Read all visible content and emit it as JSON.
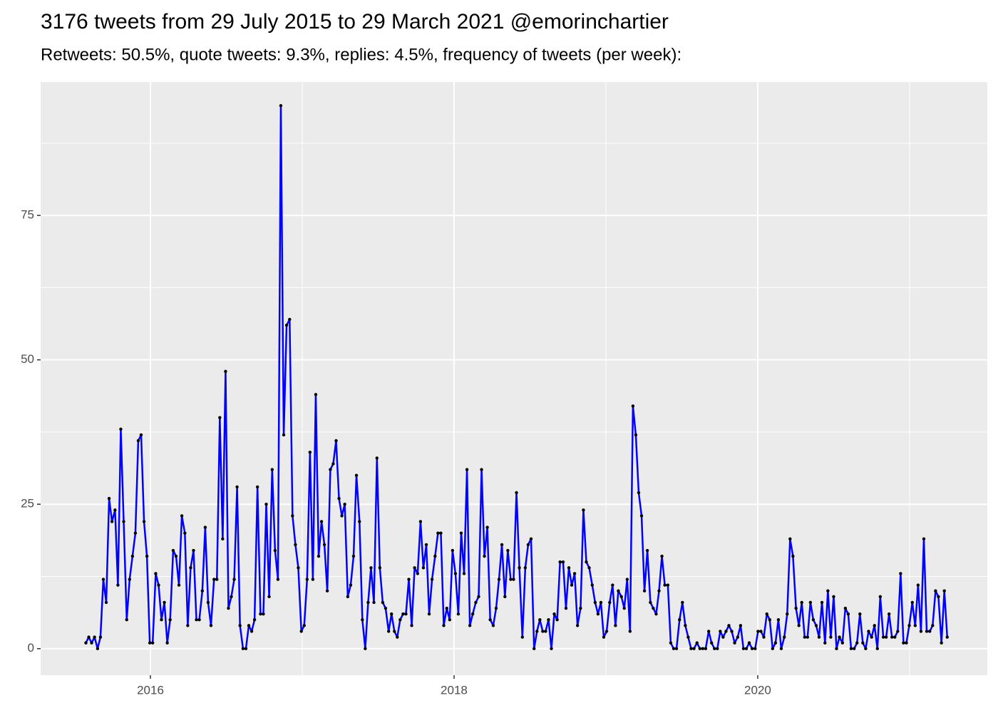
{
  "chart_data": {
    "type": "line",
    "title": "3176 tweets from 29 July 2015 to 29 March 2021 @emorinchartier",
    "subtitle": "Retweets: 50.5%, quote tweets: 9.3%, replies: 4.5%, frequency of tweets (per week):",
    "color": "#0000ff",
    "point_color": "#000000",
    "grid": true,
    "xlim": [
      2015.277,
      2021.512
    ],
    "xticks": [
      2016,
      2018,
      2020
    ],
    "xminor": [
      2017,
      2019,
      2021
    ],
    "ylim": [
      -4.6,
      98.1
    ],
    "yticks": [
      0,
      25,
      50,
      75
    ],
    "yminor": [
      12.5,
      37.5,
      62.5,
      87.5
    ],
    "x": [
      2015.575,
      2015.594,
      2015.613,
      2015.632,
      2015.652,
      2015.671,
      2015.69,
      2015.709,
      2015.728,
      2015.747,
      2015.767,
      2015.786,
      2015.805,
      2015.824,
      2015.844,
      2015.863,
      2015.882,
      2015.901,
      2015.92,
      2015.939,
      2015.958,
      2015.977,
      2015.996,
      2016.015,
      2016.035,
      2016.054,
      2016.073,
      2016.092,
      2016.111,
      2016.13,
      2016.15,
      2016.169,
      2016.188,
      2016.207,
      2016.227,
      2016.246,
      2016.265,
      2016.284,
      2016.303,
      2016.322,
      2016.342,
      2016.361,
      2016.38,
      2016.399,
      2016.419,
      2016.438,
      2016.457,
      2016.476,
      2016.495,
      2016.514,
      2016.533,
      2016.552,
      2016.571,
      2016.59,
      2016.61,
      2016.629,
      2016.648,
      2016.667,
      2016.686,
      2016.705,
      2016.725,
      2016.744,
      2016.763,
      2016.782,
      2016.802,
      2016.821,
      2016.84,
      2016.859,
      2016.878,
      2016.897,
      2016.917,
      2016.936,
      2016.955,
      2016.974,
      2016.994,
      2017.013,
      2017.032,
      2017.051,
      2017.07,
      2017.089,
      2017.108,
      2017.127,
      2017.146,
      2017.165,
      2017.185,
      2017.204,
      2017.223,
      2017.242,
      2017.261,
      2017.28,
      2017.3,
      2017.319,
      2017.338,
      2017.357,
      2017.377,
      2017.396,
      2017.415,
      2017.434,
      2017.453,
      2017.472,
      2017.492,
      2017.511,
      2017.53,
      2017.549,
      2017.569,
      2017.588,
      2017.607,
      2017.626,
      2017.645,
      2017.664,
      2017.683,
      2017.702,
      2017.721,
      2017.74,
      2017.76,
      2017.779,
      2017.798,
      2017.817,
      2017.836,
      2017.855,
      2017.875,
      2017.894,
      2017.913,
      2017.932,
      2017.952,
      2017.971,
      2017.99,
      2018.009,
      2018.028,
      2018.047,
      2018.066,
      2018.085,
      2018.104,
      2018.123,
      2018.143,
      2018.162,
      2018.181,
      2018.2,
      2018.219,
      2018.238,
      2018.258,
      2018.277,
      2018.296,
      2018.315,
      2018.335,
      2018.354,
      2018.373,
      2018.392,
      2018.411,
      2018.43,
      2018.45,
      2018.469,
      2018.488,
      2018.507,
      2018.527,
      2018.546,
      2018.565,
      2018.584,
      2018.603,
      2018.622,
      2018.641,
      2018.66,
      2018.679,
      2018.698,
      2018.718,
      2018.737,
      2018.756,
      2018.775,
      2018.794,
      2018.813,
      2018.833,
      2018.852,
      2018.871,
      2018.89,
      2018.91,
      2018.929,
      2018.948,
      2018.967,
      2018.986,
      2019.005,
      2019.025,
      2019.044,
      2019.063,
      2019.082,
      2019.102,
      2019.121,
      2019.14,
      2019.159,
      2019.178,
      2019.197,
      2019.216,
      2019.235,
      2019.254,
      2019.273,
      2019.293,
      2019.312,
      2019.331,
      2019.35,
      2019.369,
      2019.388,
      2019.408,
      2019.427,
      2019.446,
      2019.465,
      2019.485,
      2019.504,
      2019.523,
      2019.542,
      2019.561,
      2019.58,
      2019.6,
      2019.619,
      2019.638,
      2019.657,
      2019.677,
      2019.696,
      2019.715,
      2019.734,
      2019.753,
      2019.772,
      2019.791,
      2019.81,
      2019.829,
      2019.848,
      2019.868,
      2019.887,
      2019.906,
      2019.925,
      2019.944,
      2019.963,
      2019.983,
      2020.002,
      2020.021,
      2020.04,
      2020.06,
      2020.079,
      2020.098,
      2020.117,
      2020.136,
      2020.155,
      2020.175,
      2020.194,
      2020.213,
      2020.232,
      2020.252,
      2020.271,
      2020.29,
      2020.309,
      2020.328,
      2020.347,
      2020.366,
      2020.385,
      2020.404,
      2020.423,
      2020.443,
      2020.462,
      2020.481,
      2020.5,
      2020.519,
      2020.538,
      2020.558,
      2020.577,
      2020.596,
      2020.615,
      2020.635,
      2020.654,
      2020.673,
      2020.692,
      2020.711,
      2020.73,
      2020.75,
      2020.769,
      2020.788,
      2020.807,
      2020.827,
      2020.846,
      2020.865,
      2020.884,
      2020.903,
      2020.922,
      2020.941,
      2020.96,
      2020.979,
      2020.998,
      2021.018,
      2021.037,
      2021.056,
      2021.075,
      2021.094,
      2021.113,
      2021.133,
      2021.152,
      2021.171,
      2021.19,
      2021.21,
      2021.229,
      2021.248
    ],
    "values": [
      1,
      2,
      1,
      2,
      0,
      2,
      12,
      8,
      26,
      22,
      24,
      11,
      38,
      22,
      5,
      12,
      16,
      20,
      36,
      37,
      22,
      16,
      1,
      1,
      13,
      11,
      5,
      8,
      1,
      5,
      17,
      16,
      11,
      23,
      20,
      4,
      14,
      17,
      5,
      5,
      10,
      21,
      8,
      4,
      12,
      12,
      40,
      19,
      48,
      7,
      9,
      12,
      28,
      4,
      0,
      0,
      4,
      3,
      5,
      28,
      6,
      6,
      25,
      9,
      31,
      17,
      12,
      94,
      37,
      56,
      57,
      23,
      18,
      14,
      3,
      4,
      12,
      34,
      12,
      44,
      16,
      22,
      18,
      10,
      31,
      32,
      36,
      26,
      23,
      25,
      9,
      11,
      16,
      30,
      22,
      5,
      0,
      8,
      14,
      8,
      33,
      14,
      8,
      7,
      3,
      6,
      3,
      2,
      5,
      6,
      6,
      12,
      4,
      14,
      13,
      22,
      14,
      18,
      6,
      12,
      16,
      20,
      20,
      4,
      7,
      5,
      17,
      13,
      6,
      20,
      13,
      31,
      4,
      6,
      8,
      9,
      31,
      16,
      21,
      5,
      4,
      7,
      12,
      18,
      9,
      17,
      12,
      12,
      27,
      14,
      2,
      14,
      18,
      19,
      0,
      3,
      5,
      3,
      3,
      5,
      0,
      6,
      5,
      15,
      15,
      7,
      14,
      11,
      13,
      4,
      7,
      24,
      15,
      14,
      11,
      8,
      6,
      8,
      2,
      3,
      8,
      11,
      4,
      10,
      9,
      7,
      12,
      3,
      42,
      37,
      27,
      23,
      10,
      17,
      8,
      7,
      6,
      10,
      16,
      11,
      11,
      1,
      0,
      0,
      5,
      8,
      4,
      2,
      0,
      0,
      1,
      0,
      0,
      0,
      3,
      1,
      0,
      0,
      3,
      2,
      3,
      4,
      3,
      1,
      2,
      4,
      0,
      0,
      1,
      0,
      0,
      3,
      3,
      2,
      6,
      5,
      0,
      1,
      5,
      0,
      2,
      6,
      19,
      16,
      7,
      4,
      8,
      2,
      2,
      8,
      5,
      4,
      2,
      8,
      1,
      10,
      2,
      9,
      0,
      2,
      1,
      7,
      6,
      0,
      0,
      1,
      6,
      1,
      0,
      3,
      2,
      4,
      0,
      9,
      2,
      2,
      6,
      2,
      2,
      3,
      13,
      1,
      1,
      4,
      8,
      4,
      11,
      3,
      19,
      3,
      3,
      4,
      10,
      9,
      1,
      10,
      2
    ]
  }
}
